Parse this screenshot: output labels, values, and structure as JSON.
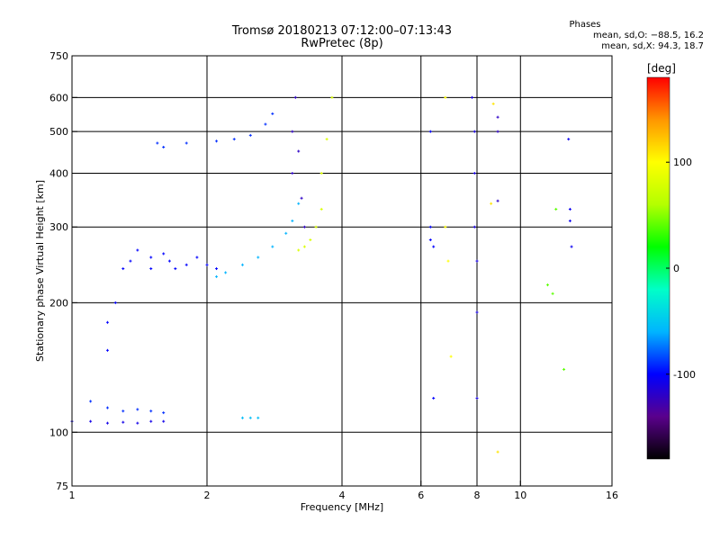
{
  "chart_data": {
    "type": "scatter",
    "title": "Tromsø 20180213 07:12:00–07:13:43",
    "subtitle": "RwPretec (8p)",
    "xlabel": "Frequency [MHz]",
    "ylabel": "Stationary phase Virtual Height [km]",
    "x_scale": "log",
    "y_scale": "log",
    "xlim": [
      1,
      16
    ],
    "ylim": [
      75,
      750
    ],
    "grid": true,
    "x_ticks": [
      {
        "value": 1,
        "label": "1"
      },
      {
        "value": 2,
        "label": "2"
      },
      {
        "value": 4,
        "label": "4"
      },
      {
        "value": 6,
        "label": "6"
      },
      {
        "value": 8,
        "label": "8"
      },
      {
        "value": 10,
        "label": "10"
      },
      {
        "value": 16,
        "label": "16"
      }
    ],
    "y_ticks": [
      {
        "value": 75,
        "label": "75"
      },
      {
        "value": 100,
        "label": "100"
      },
      {
        "value": 200,
        "label": "200"
      },
      {
        "value": 300,
        "label": "300"
      },
      {
        "value": 400,
        "label": "400"
      },
      {
        "value": 500,
        "label": "500"
      },
      {
        "value": 600,
        "label": "600"
      },
      {
        "value": 750,
        "label": "750"
      }
    ],
    "x_grid_values": [
      2,
      4,
      6,
      8,
      10
    ],
    "y_grid_values": [
      100,
      200,
      300,
      400,
      500,
      600
    ],
    "phases_stats": {
      "title": "Phases",
      "line_o": "mean, sd,O: −88.5, 16.2",
      "line_x": "mean, sd,X:  94.3, 18.7"
    },
    "colorbar": {
      "label": "[deg]",
      "range": [
        -180,
        180
      ],
      "ticks": [
        {
          "value": 100,
          "label": "100"
        },
        {
          "value": 0,
          "label": "0"
        },
        {
          "value": -100,
          "label": "-100"
        }
      ],
      "colors": [
        "#000000",
        "#5a008c",
        "#0000ff",
        "#00b4ff",
        "#00ffc8",
        "#00ff00",
        "#b4ff00",
        "#ffff00",
        "#ff9600",
        "#ff0000"
      ]
    },
    "series": [
      {
        "color_value": -108,
        "points": [
          [
            1.0,
            106
          ],
          [
            1.1,
            106
          ],
          [
            1.2,
            105
          ],
          [
            1.3,
            105.5
          ],
          [
            1.4,
            105
          ],
          [
            1.5,
            106
          ],
          [
            1.6,
            106
          ]
        ]
      },
      {
        "color_value": -55,
        "points": [
          [
            2.4,
            108
          ],
          [
            2.5,
            108
          ],
          [
            2.6,
            108
          ]
        ]
      },
      {
        "color_value": -100,
        "points": [
          [
            1.2,
            180
          ],
          [
            1.2,
            155
          ],
          [
            1.25,
            200
          ],
          [
            1.3,
            240
          ],
          [
            1.35,
            250
          ],
          [
            1.4,
            265
          ],
          [
            1.5,
            255
          ],
          [
            1.5,
            240
          ],
          [
            1.6,
            260
          ],
          [
            1.65,
            250
          ],
          [
            1.7,
            240
          ],
          [
            1.8,
            245
          ],
          [
            1.9,
            255
          ],
          [
            2.0,
            245
          ],
          [
            2.1,
            240
          ]
        ]
      },
      {
        "color_value": -90,
        "points": [
          [
            1.1,
            118
          ],
          [
            1.2,
            114
          ],
          [
            1.3,
            112
          ],
          [
            1.4,
            113
          ],
          [
            1.5,
            112
          ],
          [
            1.6,
            111
          ]
        ]
      },
      {
        "color_value": -90,
        "points": [
          [
            1.55,
            470
          ],
          [
            1.6,
            460
          ],
          [
            1.8,
            470
          ],
          [
            2.1,
            475
          ],
          [
            2.3,
            480
          ],
          [
            2.5,
            490
          ],
          [
            2.7,
            520
          ],
          [
            2.8,
            550
          ]
        ]
      },
      {
        "color_value": -60,
        "points": [
          [
            2.1,
            230
          ],
          [
            2.2,
            235
          ],
          [
            2.4,
            245
          ],
          [
            2.6,
            255
          ],
          [
            2.8,
            270
          ],
          [
            3.0,
            290
          ],
          [
            3.1,
            310
          ],
          [
            3.2,
            340
          ]
        ]
      },
      {
        "color_value": -120,
        "points": [
          [
            3.1,
            400
          ],
          [
            3.1,
            500
          ],
          [
            3.15,
            600
          ],
          [
            3.2,
            450
          ],
          [
            3.25,
            350
          ],
          [
            3.3,
            300
          ]
        ]
      },
      {
        "color_value": 80,
        "points": [
          [
            3.2,
            265
          ],
          [
            3.3,
            270
          ],
          [
            3.4,
            280
          ],
          [
            3.5,
            300
          ],
          [
            3.6,
            330
          ],
          [
            3.6,
            400
          ],
          [
            3.7,
            480
          ],
          [
            3.8,
            600
          ]
        ]
      },
      {
        "color_value": -100,
        "points": [
          [
            6.3,
            300
          ],
          [
            6.3,
            280
          ],
          [
            6.3,
            500
          ],
          [
            6.4,
            270
          ],
          [
            6.4,
            120
          ]
        ]
      },
      {
        "color_value": 100,
        "points": [
          [
            6.8,
            600
          ],
          [
            6.8,
            300
          ],
          [
            6.9,
            250
          ],
          [
            7.0,
            150
          ]
        ]
      },
      {
        "color_value": -110,
        "points": [
          [
            7.8,
            600
          ],
          [
            7.9,
            500
          ],
          [
            7.9,
            400
          ],
          [
            7.9,
            300
          ],
          [
            8.0,
            250
          ],
          [
            8.0,
            120
          ],
          [
            8.0,
            190
          ]
        ]
      },
      {
        "color_value": -120,
        "points": [
          [
            8.9,
            345
          ],
          [
            8.9,
            500
          ],
          [
            8.9,
            540
          ]
        ]
      },
      {
        "color_value": 110,
        "points": [
          [
            8.9,
            90
          ],
          [
            8.7,
            580
          ],
          [
            8.6,
            340
          ]
        ]
      },
      {
        "color_value": 40,
        "points": [
          [
            11.5,
            220
          ],
          [
            11.8,
            210
          ],
          [
            12.0,
            330
          ],
          [
            12.5,
            140
          ]
        ]
      },
      {
        "color_value": -105,
        "points": [
          [
            12.8,
            480
          ],
          [
            12.9,
            310
          ],
          [
            12.9,
            330
          ],
          [
            13.0,
            270
          ]
        ]
      }
    ]
  }
}
